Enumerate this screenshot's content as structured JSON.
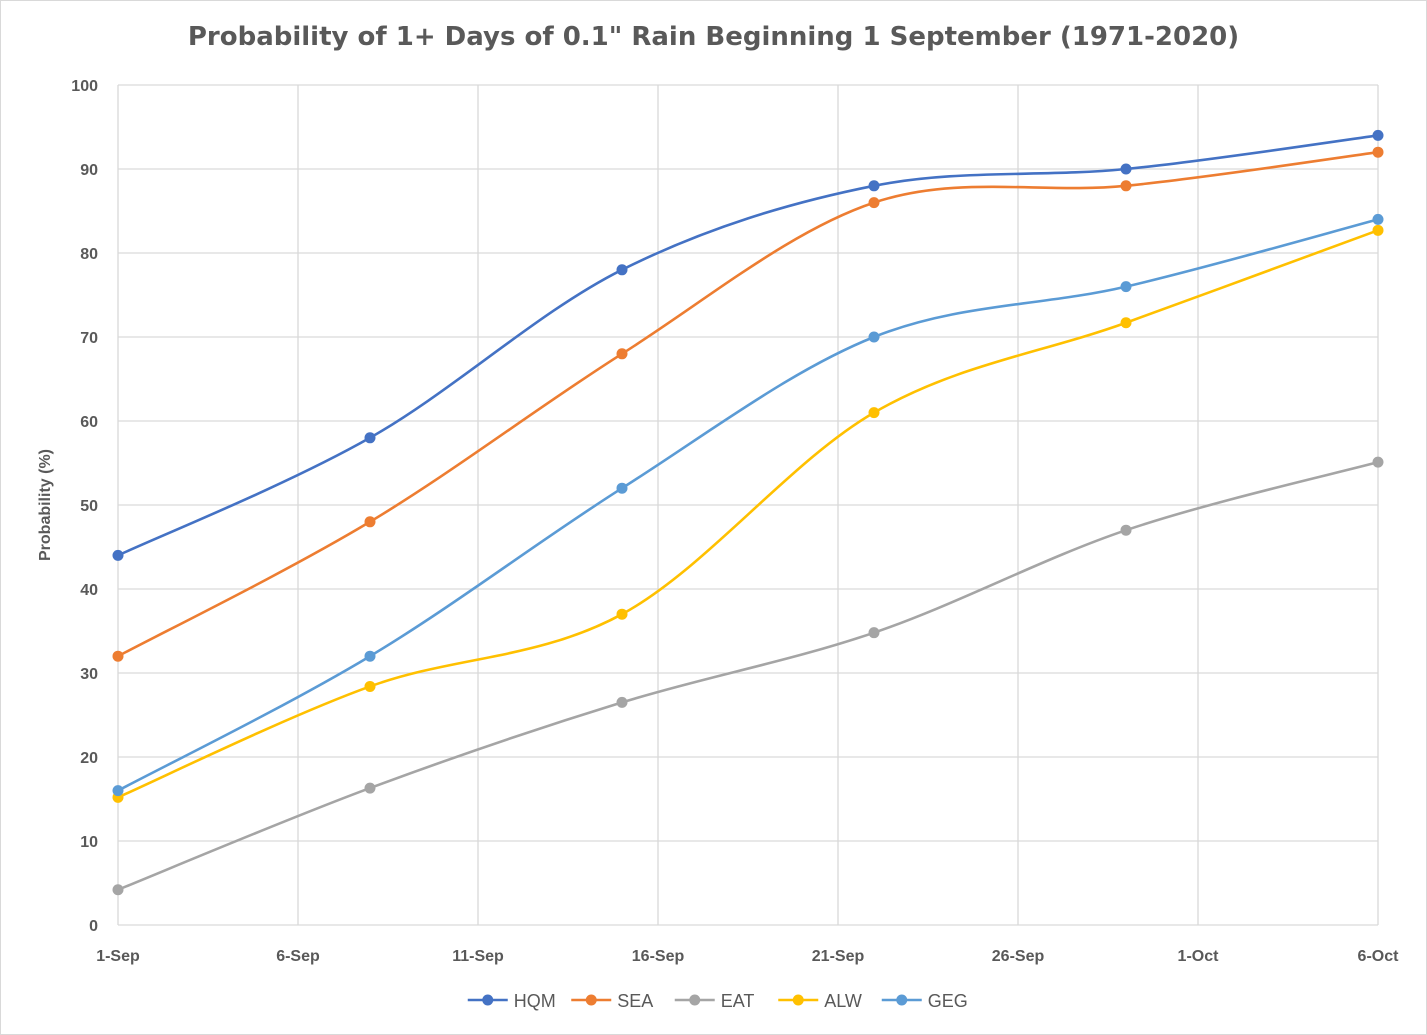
{
  "chart_data": {
    "type": "line",
    "title": "Probability of 1+ Days of 0.1\" Rain Beginning 1 September (1971-2020)",
    "xlabel": "",
    "ylabel": "Probability (%)",
    "x_tick_labels": [
      "1-Sep",
      "6-Sep",
      "11-Sep",
      "16-Sep",
      "21-Sep",
      "26-Sep",
      "1-Oct",
      "6-Oct"
    ],
    "y_ticks": [
      0,
      10,
      20,
      30,
      40,
      50,
      60,
      70,
      80,
      90,
      100
    ],
    "ylim": [
      0,
      100
    ],
    "x_domain_dates": [
      "2001-09-01",
      "2001-10-06"
    ],
    "x": [
      "2001-09-01",
      "2001-09-08",
      "2001-09-15",
      "2001-09-22",
      "2001-09-29",
      "2001-10-06"
    ],
    "grid": true,
    "smooth": true,
    "legend_position": "bottom",
    "series": [
      {
        "name": "HQM",
        "color": "#4472C4",
        "values": [
          44,
          58,
          78,
          88,
          90,
          94
        ]
      },
      {
        "name": "SEA",
        "color": "#ED7D31",
        "values": [
          32,
          48,
          68,
          86,
          88,
          92
        ]
      },
      {
        "name": "EAT",
        "color": "#A5A5A5",
        "values": [
          4.2,
          16.3,
          26.5,
          34.8,
          47,
          55.1
        ]
      },
      {
        "name": "ALW",
        "color": "#FFC000",
        "values": [
          15.2,
          28.4,
          37,
          61,
          71.7,
          82.7
        ]
      },
      {
        "name": "GEG",
        "color": "#5B9BD5",
        "values": [
          16,
          32,
          52,
          70,
          76,
          84
        ]
      }
    ]
  }
}
